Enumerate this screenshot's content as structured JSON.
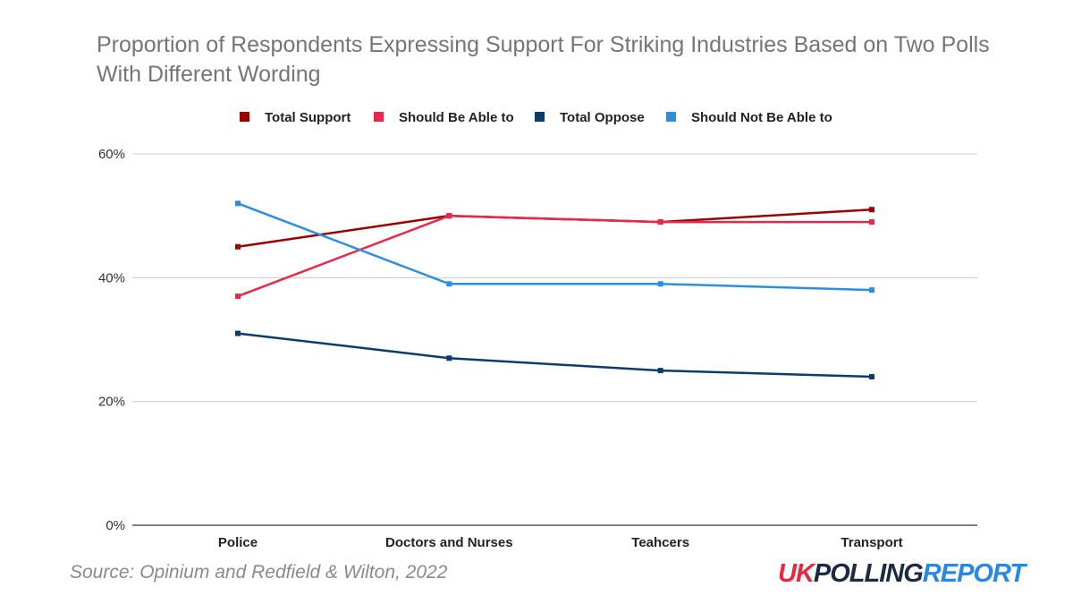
{
  "chart_data": {
    "type": "line",
    "title": "Proportion of Respondents Expressing Support For Striking Industries Based on Two Polls With Different Wording",
    "categories": [
      "Police",
      "Doctors and Nurses",
      "Teahcers",
      "Transport"
    ],
    "series": [
      {
        "name": "Total Support",
        "color": "#990000",
        "values": [
          45,
          50,
          49,
          51
        ]
      },
      {
        "name": "Should Be Able to",
        "color": "#e8284a",
        "values": [
          37,
          50,
          49,
          49
        ]
      },
      {
        "name": "Total Oppose",
        "color": "#0b3c6b",
        "values": [
          31,
          27,
          25,
          24
        ]
      },
      {
        "name": "Should Not Be Able to",
        "color": "#2b8ee0",
        "values": [
          52,
          39,
          39,
          38
        ]
      }
    ],
    "ylim": [
      0,
      60
    ],
    "yticks": [
      "0%",
      "20%",
      "40%",
      "60%"
    ],
    "ytick_values": [
      0,
      20,
      40,
      60
    ],
    "grid": true,
    "legend_position": "top"
  },
  "footer": {
    "source": "Source: Opinium and Redfield & Wilton, 2022",
    "brand_uk": "UK",
    "brand_polling": "POLLING",
    "brand_report": "REPORT"
  }
}
